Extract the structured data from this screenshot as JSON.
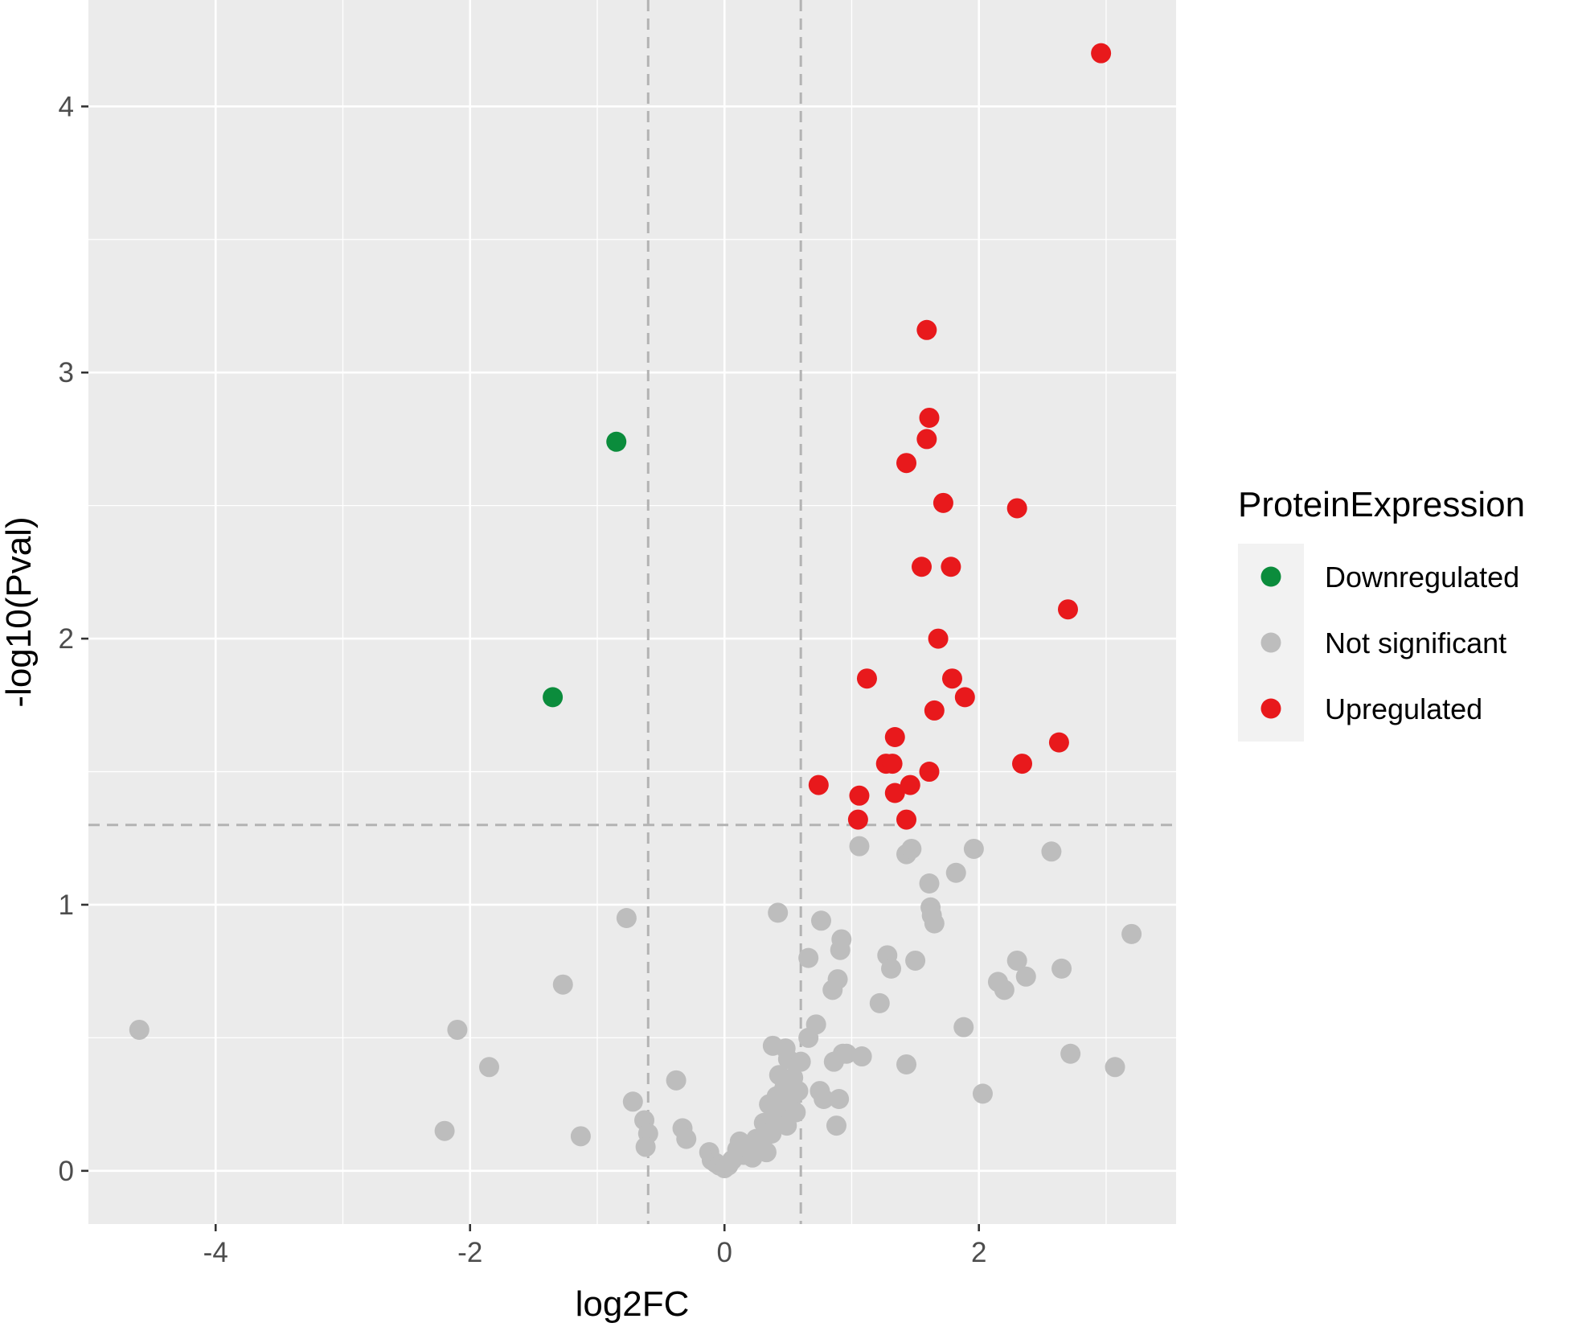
{
  "chart_data": {
    "type": "scatter",
    "xlabel": "log2FC",
    "ylabel": "-log10(Pval)",
    "xlim": [
      -5.0,
      3.55
    ],
    "ylim": [
      -0.2,
      4.4
    ],
    "x_ticks": [
      -4,
      -2,
      0,
      2
    ],
    "y_ticks": [
      0,
      1,
      2,
      3,
      4
    ],
    "x_minor": [
      -3,
      -1,
      1,
      3
    ],
    "y_minor": [
      0.5,
      1.5,
      2.5,
      3.5
    ],
    "grid": true,
    "thresholds": {
      "vertical": [
        -0.6,
        0.6
      ],
      "horizontal": 1.3
    },
    "legend": {
      "title": "ProteinExpression",
      "position": "right",
      "entries": [
        {
          "label": "Downregulated",
          "color": "#0b8c3c"
        },
        {
          "label": "Not significant",
          "color": "#bdbdbd"
        },
        {
          "label": "Upregulated",
          "color": "#e8191c"
        }
      ]
    },
    "series": [
      {
        "name": "Downregulated",
        "color": "#0b8c3c",
        "points": [
          [
            -0.85,
            2.74
          ],
          [
            -1.35,
            1.78
          ]
        ]
      },
      {
        "name": "Not significant",
        "color": "#bdbdbd",
        "points": [
          [
            -4.6,
            0.53
          ],
          [
            -2.1,
            0.53
          ],
          [
            -1.85,
            0.39
          ],
          [
            -2.2,
            0.15
          ],
          [
            -1.27,
            0.7
          ],
          [
            -1.13,
            0.13
          ],
          [
            -0.77,
            0.95
          ],
          [
            -0.72,
            0.26
          ],
          [
            -0.63,
            0.19
          ],
          [
            -0.6,
            0.14
          ],
          [
            -0.62,
            0.09
          ],
          [
            -0.38,
            0.34
          ],
          [
            -0.33,
            0.16
          ],
          [
            -0.3,
            0.12
          ],
          [
            -0.12,
            0.07
          ],
          [
            -0.1,
            0.04
          ],
          [
            -0.07,
            0.03
          ],
          [
            -0.04,
            0.02
          ],
          [
            0.0,
            0.01
          ],
          [
            0.03,
            0.02
          ],
          [
            0.06,
            0.04
          ],
          [
            0.1,
            0.08
          ],
          [
            0.12,
            0.11
          ],
          [
            0.15,
            0.06
          ],
          [
            0.18,
            0.09
          ],
          [
            0.22,
            0.05
          ],
          [
            0.25,
            0.12
          ],
          [
            0.28,
            0.1
          ],
          [
            0.31,
            0.18
          ],
          [
            0.33,
            0.07
          ],
          [
            0.35,
            0.25
          ],
          [
            0.37,
            0.14
          ],
          [
            0.39,
            0.2
          ],
          [
            0.41,
            0.28
          ],
          [
            0.43,
            0.36
          ],
          [
            0.45,
            0.23
          ],
          [
            0.47,
            0.31
          ],
          [
            0.49,
            0.17
          ],
          [
            0.5,
            0.42
          ],
          [
            0.52,
            0.26
          ],
          [
            0.54,
            0.35
          ],
          [
            0.56,
            0.22
          ],
          [
            0.58,
            0.3
          ],
          [
            0.38,
            0.47
          ],
          [
            0.48,
            0.46
          ],
          [
            0.6,
            0.41
          ],
          [
            0.42,
            0.97
          ],
          [
            0.66,
            0.5
          ],
          [
            0.72,
            0.55
          ],
          [
            0.75,
            0.3
          ],
          [
            0.78,
            0.27
          ],
          [
            0.85,
            0.68
          ],
          [
            0.89,
            0.72
          ],
          [
            0.88,
            0.17
          ],
          [
            0.9,
            0.27
          ],
          [
            0.86,
            0.41
          ],
          [
            0.93,
            0.44
          ],
          [
            0.96,
            0.44
          ],
          [
            1.08,
            0.43
          ],
          [
            0.66,
            0.8
          ],
          [
            0.76,
            0.94
          ],
          [
            0.91,
            0.83
          ],
          [
            0.92,
            0.87
          ],
          [
            1.22,
            0.63
          ],
          [
            1.28,
            0.81
          ],
          [
            1.31,
            0.76
          ],
          [
            1.43,
            0.4
          ],
          [
            1.5,
            0.79
          ],
          [
            1.06,
            1.22
          ],
          [
            1.43,
            1.19
          ],
          [
            1.47,
            1.21
          ],
          [
            1.61,
            1.08
          ],
          [
            1.62,
            0.99
          ],
          [
            1.63,
            0.96
          ],
          [
            1.65,
            0.93
          ],
          [
            1.82,
            1.12
          ],
          [
            1.88,
            0.54
          ],
          [
            1.96,
            1.21
          ],
          [
            2.03,
            0.29
          ],
          [
            2.15,
            0.71
          ],
          [
            2.2,
            0.68
          ],
          [
            2.3,
            0.79
          ],
          [
            2.37,
            0.73
          ],
          [
            2.57,
            1.2
          ],
          [
            2.65,
            0.76
          ],
          [
            2.72,
            0.44
          ],
          [
            3.07,
            0.39
          ],
          [
            3.2,
            0.89
          ]
        ]
      },
      {
        "name": "Upregulated",
        "color": "#e8191c",
        "points": [
          [
            2.96,
            4.2
          ],
          [
            1.59,
            3.16
          ],
          [
            1.61,
            2.83
          ],
          [
            1.59,
            2.75
          ],
          [
            1.43,
            2.66
          ],
          [
            1.72,
            2.51
          ],
          [
            2.3,
            2.49
          ],
          [
            1.55,
            2.27
          ],
          [
            1.78,
            2.27
          ],
          [
            2.7,
            2.11
          ],
          [
            1.68,
            2.0
          ],
          [
            1.12,
            1.85
          ],
          [
            1.79,
            1.85
          ],
          [
            1.89,
            1.78
          ],
          [
            1.65,
            1.73
          ],
          [
            1.34,
            1.63
          ],
          [
            2.63,
            1.61
          ],
          [
            1.27,
            1.53
          ],
          [
            1.32,
            1.53
          ],
          [
            2.34,
            1.53
          ],
          [
            1.61,
            1.5
          ],
          [
            0.74,
            1.45
          ],
          [
            1.46,
            1.45
          ],
          [
            1.06,
            1.41
          ],
          [
            1.34,
            1.42
          ],
          [
            1.05,
            1.32
          ],
          [
            1.43,
            1.32
          ]
        ]
      }
    ]
  }
}
